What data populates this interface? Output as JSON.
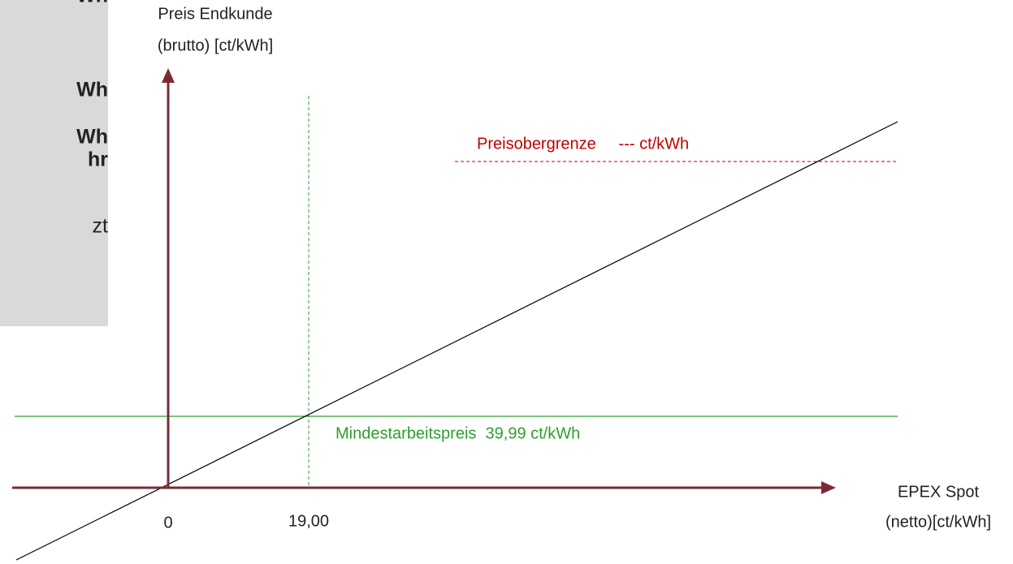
{
  "sidebar": {
    "fragments": [
      "Wh",
      "Wh",
      "Wh",
      "hr",
      "zt"
    ]
  },
  "y_axis": {
    "label_lines": [
      "Preis Endkunde",
      "(brutto) [ct/kWh]"
    ]
  },
  "x_axis": {
    "label_lines": [
      "EPEX Spot",
      "(netto)[ct/kWh]"
    ],
    "tick_labels": [
      "0",
      "19,00"
    ]
  },
  "lines": {
    "upper_limit": "Preisobergrenze     --- ct/kWh",
    "minimum": "Mindestarbeitspreis  39,99 ct/kWh"
  }
}
